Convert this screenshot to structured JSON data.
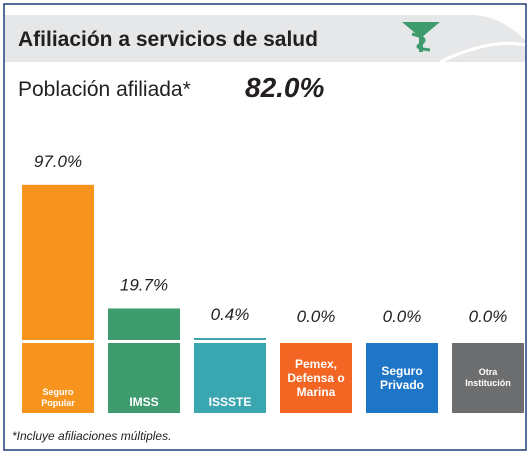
{
  "chart_data": {
    "type": "bar",
    "title": "Afiliación a servicios de salud",
    "subtitle": "Población afiliada*",
    "total_label": "82.0%",
    "categories": [
      "Seguro Popular",
      "IMSS",
      "ISSSTE",
      "Pemex, Defensa o Marina",
      "Seguro Privado",
      "Otra Institución"
    ],
    "values": [
      97.0,
      19.7,
      0.4,
      0.0,
      0.0,
      0.0
    ],
    "value_labels": [
      "97.0%",
      "19.7%",
      "0.4%",
      "0.0%",
      "0.0%",
      "0.0%"
    ],
    "colors": [
      "#f7941d",
      "#3d9b6e",
      "#3aa7b0",
      "#f26522",
      "#1f75c6",
      "#6d6e70"
    ],
    "note": "*Incluye afiliaciones múltiples."
  }
}
